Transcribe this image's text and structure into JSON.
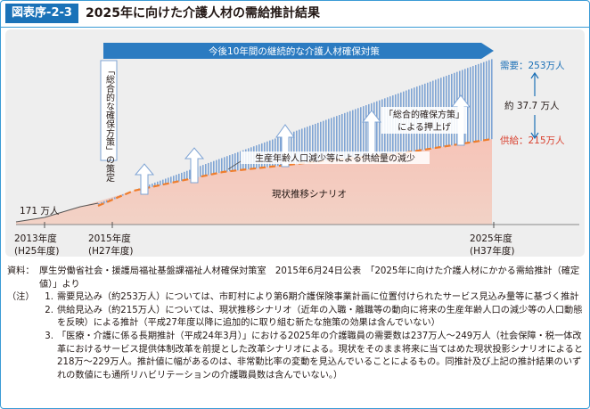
{
  "header": {
    "badge": "図表序-2-3",
    "title": "2025年に向けた介護人材の需給推計結果"
  },
  "chart_data": {
    "type": "area",
    "banner": "今後10年間の継続的な介護人材確保対策",
    "vertical_label": "「総合的な確保方策」の策定",
    "series": [
      {
        "name": "需要",
        "label": "需要：253万人",
        "values": [
          {
            "x": "2013年度",
            "y": 171
          },
          {
            "x": "2025年度",
            "y": 253
          }
        ]
      },
      {
        "name": "供給",
        "label": "供給：215万人",
        "values": [
          {
            "x": "2013年度",
            "y": 171
          },
          {
            "x": "2025年度",
            "y": 215
          }
        ]
      }
    ],
    "start_label": "171 万人",
    "gap_label": "約 37.7 万人",
    "inner_labels": {
      "policy_line1": "「総合的確保方策」",
      "policy_line2": "による押上げ",
      "decline": "生産年齢人口減少等による供給量の減少",
      "baseline": "現状推移シナリオ"
    },
    "x_ticks": [
      {
        "line1": "2013年度",
        "line2": "(H25年度)"
      },
      {
        "line1": "2015年度",
        "line2": "(H27年度)"
      },
      {
        "line1": "2025年度",
        "line2": "(H37年度)"
      }
    ],
    "colors": {
      "banner": "#2b7bc1",
      "bars": "#7fa4d4",
      "supply": "#f4b9ad",
      "demand_text": "#1a6fb6",
      "supply_text": "#d9412f",
      "dashed": "#ef7d2c"
    }
  },
  "notes": {
    "source_label": "資料：",
    "source_text": "厚生労働省社会・援護局福祉基盤課福祉人材確保対策室　2015年6月24日公表　「2025年に向けた介護人材にかかる需給推計（確定値）」より",
    "notes_label": "（注）",
    "items": [
      {
        "num": "1.",
        "text": "需要見込み（約253万人）については、市町村により第6期介護保険事業計画に位置付けられたサービス見込み量等に基づく推計"
      },
      {
        "num": "2.",
        "text": "供給見込み（約215万人）については、現状推移シナリオ（近年の入職・離職等の動向に将来の生産年齢人口の減少等の人口動態を反映）による推計（平成27年度以降に追加的に取り組む新たな施策の効果は含んでいない）"
      },
      {
        "num": "3.",
        "text": "「医療・介護に係る長期推計（平成24年3月）」における2025年の介護職員の需要数は237万人～249万人（社会保障・税一体改革におけるサービス提供体制改革を前提とした改革シナリオによる。現状をそのまま将来に当てはめた現状投影シナリオによると218万～229万人。推計値に幅があるのは、非常勤比率の変動を見込んでいることによるもの。同推計及び上記の推計結果のいずれの数値にも通所リハビリテーションの介護職員数は含んでいない。）"
      }
    ]
  }
}
